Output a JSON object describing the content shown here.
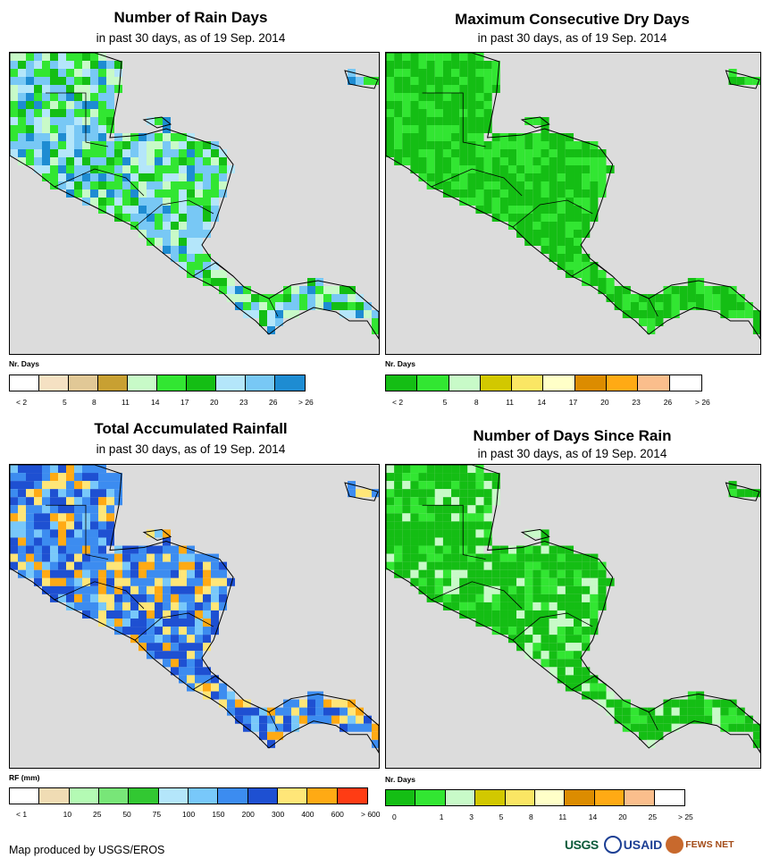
{
  "panels": [
    {
      "id": "rain-days",
      "title": "Number of Rain Days",
      "subtitle": "in past 30 days, as of 19 Sep. 2014",
      "legend_title": "Nr. Days",
      "legend": [
        {
          "label": "< 2",
          "color": "#ffffff"
        },
        {
          "label": "5",
          "color": "#f5e1c3"
        },
        {
          "label": "8",
          "color": "#e1c896"
        },
        {
          "label": "11",
          "color": "#c8a032"
        },
        {
          "label": "14",
          "color": "#c8fac8"
        },
        {
          "label": "17",
          "color": "#32e632"
        },
        {
          "label": "20",
          "color": "#14be14"
        },
        {
          "label": "23",
          "color": "#b4e6fa"
        },
        {
          "label": "26",
          "color": "#78c8f5"
        },
        {
          "label": "> 26",
          "color": "#1e8cd2"
        }
      ],
      "map_palette": [
        "#32e632",
        "#14be14",
        "#b4e6fa",
        "#78c8f5",
        "#32e632",
        "#78c8f5",
        "#1e8cd2",
        "#c8fac8"
      ]
    },
    {
      "id": "dry-days",
      "title": "Maximum Consecutive Dry Days",
      "subtitle": "in past 30 days, as of 19 Sep. 2014",
      "legend_title": "Nr. Days",
      "legend": [
        {
          "label": "< 2",
          "color": "#14be14"
        },
        {
          "label": "5",
          "color": "#32e632"
        },
        {
          "label": "8",
          "color": "#c8fac8"
        },
        {
          "label": "11",
          "color": "#d2c800"
        },
        {
          "label": "14",
          "color": "#fae664"
        },
        {
          "label": "17",
          "color": "#ffffc8"
        },
        {
          "label": "20",
          "color": "#dc8c00"
        },
        {
          "label": "23",
          "color": "#ffaa14"
        },
        {
          "label": "26",
          "color": "#fabe8c"
        },
        {
          "label": "> 26",
          "color": "#ffffff"
        }
      ],
      "map_palette": [
        "#14be14",
        "#14be14",
        "#32e632",
        "#14be14",
        "#32e632"
      ]
    },
    {
      "id": "rainfall",
      "title": "Total Accumulated Rainfall",
      "subtitle": "in past 30 days, as of 19 Sep. 2014",
      "legend_title": "RF (mm)",
      "legend": [
        {
          "label": "< 1",
          "color": "#ffffff"
        },
        {
          "label": "10",
          "color": "#f0dcb4"
        },
        {
          "label": "25",
          "color": "#b4fab4"
        },
        {
          "label": "50",
          "color": "#78e678"
        },
        {
          "label": "75",
          "color": "#32c832"
        },
        {
          "label": "100",
          "color": "#b4e6fa"
        },
        {
          "label": "150",
          "color": "#78c8fa"
        },
        {
          "label": "200",
          "color": "#3c8cf0"
        },
        {
          "label": "300",
          "color": "#1e50d2"
        },
        {
          "label": "400",
          "color": "#ffe678"
        },
        {
          "label": "600",
          "color": "#ffaa14"
        },
        {
          "label": "> 600",
          "color": "#ff3c14"
        }
      ],
      "map_palette": [
        "#3c8cf0",
        "#1e50d2",
        "#3c8cf0",
        "#ffe678",
        "#3c8cf0",
        "#ffaa14",
        "#1e50d2",
        "#78c8fa"
      ]
    },
    {
      "id": "days-since-rain",
      "title": "Number of Days Since Rain",
      "subtitle": "in past 30 days, as of 19 Sep. 2014",
      "legend_title": "Nr. Days",
      "legend": [
        {
          "label": "0",
          "color": "#14be14"
        },
        {
          "label": "1",
          "color": "#32e632"
        },
        {
          "label": "3",
          "color": "#c8fac8"
        },
        {
          "label": "5",
          "color": "#d2c800"
        },
        {
          "label": "8",
          "color": "#fae664"
        },
        {
          "label": "11",
          "color": "#ffffc8"
        },
        {
          "label": "14",
          "color": "#dc8c00"
        },
        {
          "label": "20",
          "color": "#ffaa14"
        },
        {
          "label": "25",
          "color": "#fabe8c"
        },
        {
          "label": "> 25",
          "color": "#ffffff"
        }
      ],
      "map_palette": [
        "#14be14",
        "#14be14",
        "#14be14",
        "#32e632",
        "#14be14",
        "#c8fac8"
      ]
    }
  ],
  "credit": "Map produced by USGS/EROS",
  "logos": {
    "usgs": "USGS",
    "usaid": "USAID",
    "fews": "FEWS NET"
  }
}
